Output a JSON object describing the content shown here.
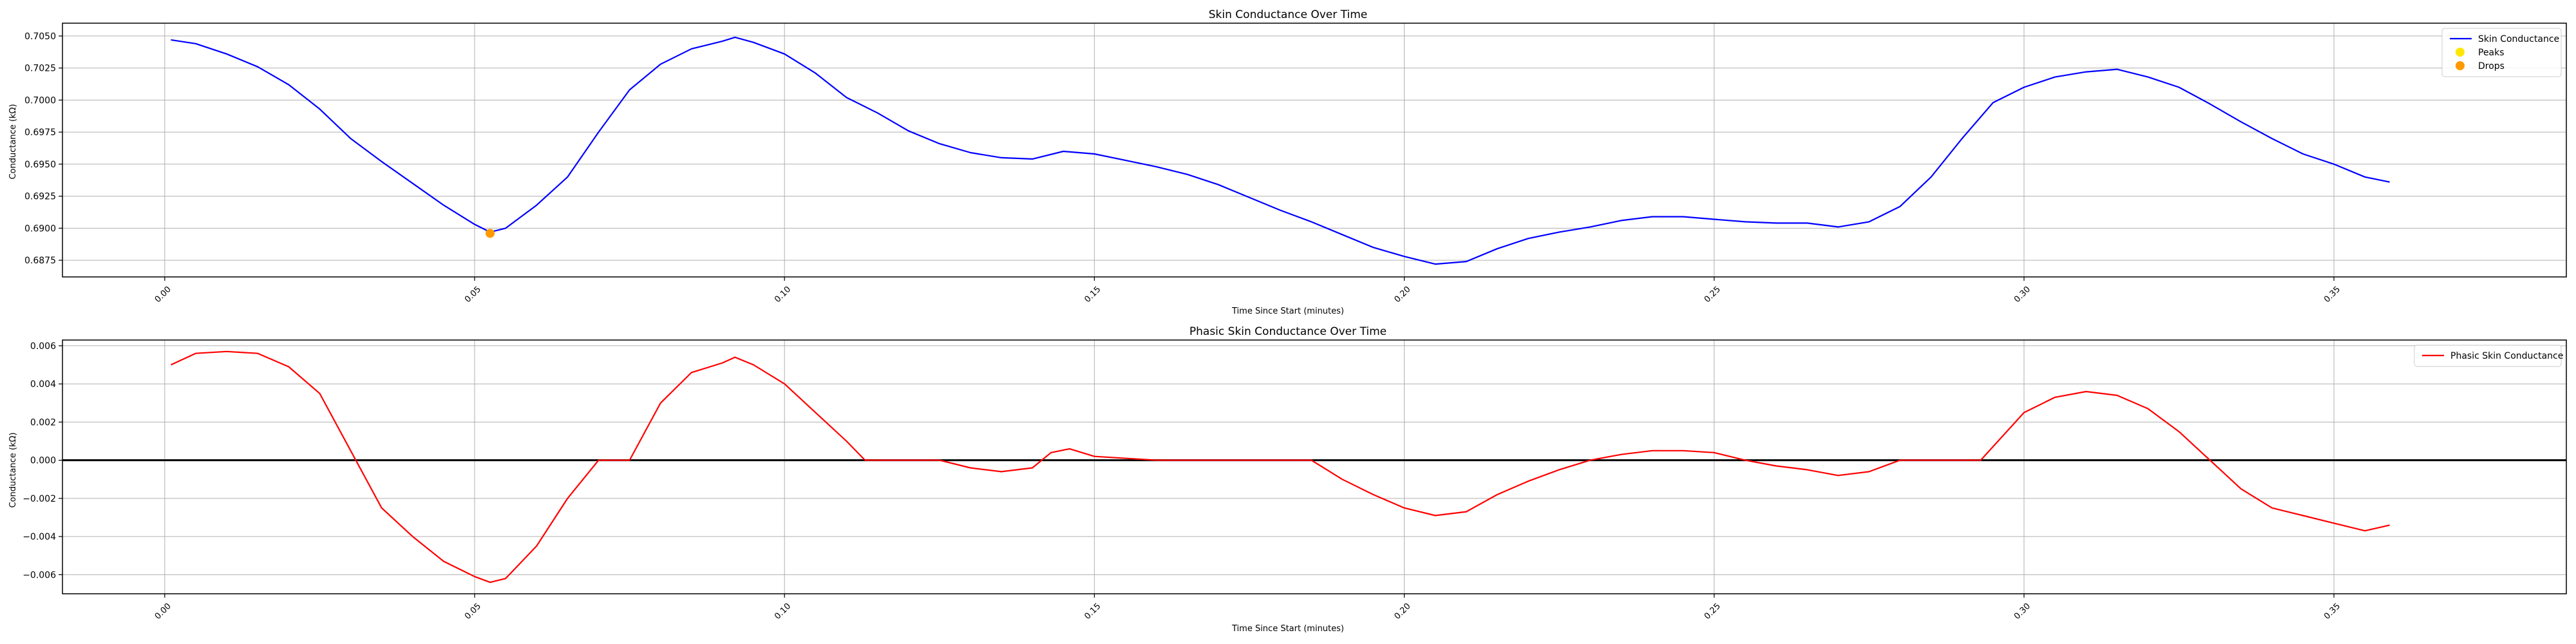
{
  "chart_data": [
    {
      "type": "line",
      "title": "Skin Conductance Over Time",
      "xlabel": "Time Since Start (minutes)",
      "ylabel": "Conductance (kΩ)",
      "xlim": [
        -0.0165,
        0.3875
      ],
      "ylim": [
        0.6862,
        0.706
      ],
      "x_ticks": [
        0.0,
        0.05,
        0.1,
        0.15,
        0.2,
        0.25,
        0.3,
        0.35
      ],
      "x_tick_labels": [
        "0.00",
        "0.05",
        "0.10",
        "0.15",
        "0.20",
        "0.25",
        "0.30",
        "0.35"
      ],
      "y_ticks": [
        0.6875,
        0.69,
        0.6925,
        0.695,
        0.6975,
        0.7,
        0.7025,
        0.705
      ],
      "y_tick_labels": [
        "0.6875",
        "0.6900",
        "0.6925",
        "0.6950",
        "0.6975",
        "0.7000",
        "0.7025",
        "0.7050"
      ],
      "grid": true,
      "legend_position": "top-right",
      "series": [
        {
          "name": "Skin Conductance",
          "color": "#0000ff",
          "x": [
            0.001,
            0.005,
            0.01,
            0.015,
            0.02,
            0.025,
            0.03,
            0.035,
            0.04,
            0.045,
            0.05,
            0.0525,
            0.055,
            0.06,
            0.065,
            0.07,
            0.075,
            0.08,
            0.085,
            0.09,
            0.092,
            0.095,
            0.1,
            0.105,
            0.11,
            0.115,
            0.12,
            0.125,
            0.13,
            0.135,
            0.14,
            0.145,
            0.15,
            0.155,
            0.16,
            0.165,
            0.17,
            0.175,
            0.18,
            0.185,
            0.19,
            0.195,
            0.2,
            0.205,
            0.21,
            0.215,
            0.22,
            0.225,
            0.23,
            0.235,
            0.24,
            0.245,
            0.25,
            0.255,
            0.26,
            0.265,
            0.27,
            0.275,
            0.28,
            0.285,
            0.29,
            0.295,
            0.3,
            0.305,
            0.31,
            0.315,
            0.32,
            0.325,
            0.33,
            0.335,
            0.34,
            0.345,
            0.35,
            0.355,
            0.359
          ],
          "y": [
            0.7047,
            0.7044,
            0.7036,
            0.7026,
            0.7012,
            0.6993,
            0.697,
            0.6952,
            0.6935,
            0.6918,
            0.6903,
            0.6897,
            0.69,
            0.6918,
            0.694,
            0.6975,
            0.7008,
            0.7028,
            0.704,
            0.7046,
            0.7049,
            0.7045,
            0.7036,
            0.7021,
            0.7002,
            0.699,
            0.6976,
            0.6966,
            0.6959,
            0.6955,
            0.6954,
            0.696,
            0.6958,
            0.6953,
            0.6948,
            0.6942,
            0.6934,
            0.6924,
            0.6914,
            0.6905,
            0.6895,
            0.6885,
            0.6878,
            0.6872,
            0.6874,
            0.6884,
            0.6892,
            0.6897,
            0.6901,
            0.6906,
            0.6909,
            0.6909,
            0.6907,
            0.6905,
            0.6904,
            0.6904,
            0.6901,
            0.6905,
            0.6917,
            0.694,
            0.697,
            0.6998,
            0.701,
            0.7018,
            0.7022,
            0.7024,
            0.7018,
            0.701,
            0.6997,
            0.6983,
            0.697,
            0.6958,
            0.695,
            0.694,
            0.6936
          ]
        },
        {
          "name": "Peaks",
          "color": "#ffe600",
          "kind": "scatter",
          "x": [],
          "y": []
        },
        {
          "name": "Drops",
          "color": "#ff9900",
          "kind": "scatter",
          "x": [
            0.0525
          ],
          "y": [
            0.6896
          ]
        }
      ]
    },
    {
      "type": "line",
      "title": "Phasic Skin Conductance Over Time",
      "xlabel": "Time Since Start (minutes)",
      "ylabel": "Conductance (kΩ)",
      "xlim": [
        -0.0165,
        0.3875
      ],
      "ylim": [
        -0.007,
        0.0063
      ],
      "x_ticks": [
        0.0,
        0.05,
        0.1,
        0.15,
        0.2,
        0.25,
        0.3,
        0.35
      ],
      "x_tick_labels": [
        "0.00",
        "0.05",
        "0.10",
        "0.15",
        "0.20",
        "0.25",
        "0.30",
        "0.35"
      ],
      "y_ticks": [
        -0.006,
        -0.004,
        -0.002,
        0.0,
        0.002,
        0.004,
        0.006
      ],
      "y_tick_labels": [
        "−0.006",
        "−0.004",
        "−0.002",
        "0.000",
        "0.002",
        "0.004",
        "0.006"
      ],
      "grid": true,
      "legend_position": "top-right",
      "hline": 0.0,
      "series": [
        {
          "name": "Phasic Skin Conductance",
          "color": "#ff0000",
          "x": [
            0.001,
            0.005,
            0.01,
            0.015,
            0.02,
            0.025,
            0.03,
            0.035,
            0.04,
            0.045,
            0.05,
            0.0525,
            0.055,
            0.06,
            0.065,
            0.07,
            0.075,
            0.08,
            0.085,
            0.09,
            0.092,
            0.095,
            0.1,
            0.105,
            0.11,
            0.113,
            0.12,
            0.125,
            0.13,
            0.135,
            0.14,
            0.143,
            0.146,
            0.15,
            0.16,
            0.17,
            0.18,
            0.185,
            0.19,
            0.195,
            0.2,
            0.205,
            0.21,
            0.215,
            0.22,
            0.225,
            0.23,
            0.235,
            0.24,
            0.245,
            0.25,
            0.255,
            0.26,
            0.265,
            0.27,
            0.275,
            0.28,
            0.285,
            0.29,
            0.293,
            0.3,
            0.305,
            0.31,
            0.315,
            0.32,
            0.325,
            0.33,
            0.335,
            0.34,
            0.345,
            0.35,
            0.355,
            0.359
          ],
          "y": [
            0.005,
            0.0056,
            0.0057,
            0.0056,
            0.0049,
            0.0035,
            0.0005,
            -0.0025,
            -0.004,
            -0.0053,
            -0.0061,
            -0.0064,
            -0.0062,
            -0.0045,
            -0.002,
            0.0,
            0.0,
            0.003,
            0.0046,
            0.0051,
            0.0054,
            0.005,
            0.004,
            0.0025,
            0.001,
            0.0,
            0.0,
            0.0,
            -0.0004,
            -0.0006,
            -0.0004,
            0.0004,
            0.0006,
            0.0002,
            0.0,
            0.0,
            0.0,
            0.0,
            -0.001,
            -0.0018,
            -0.0025,
            -0.0029,
            -0.0027,
            -0.0018,
            -0.0011,
            -0.0005,
            0.0,
            0.0003,
            0.0005,
            0.0005,
            0.0004,
            0.0,
            -0.0003,
            -0.0005,
            -0.0008,
            -0.0006,
            0.0,
            0.0,
            0.0,
            0.0,
            0.0025,
            0.0033,
            0.0036,
            0.0034,
            0.0027,
            0.0015,
            0.0,
            -0.0015,
            -0.0025,
            -0.0029,
            -0.0033,
            -0.0037,
            -0.0034
          ]
        }
      ]
    }
  ]
}
